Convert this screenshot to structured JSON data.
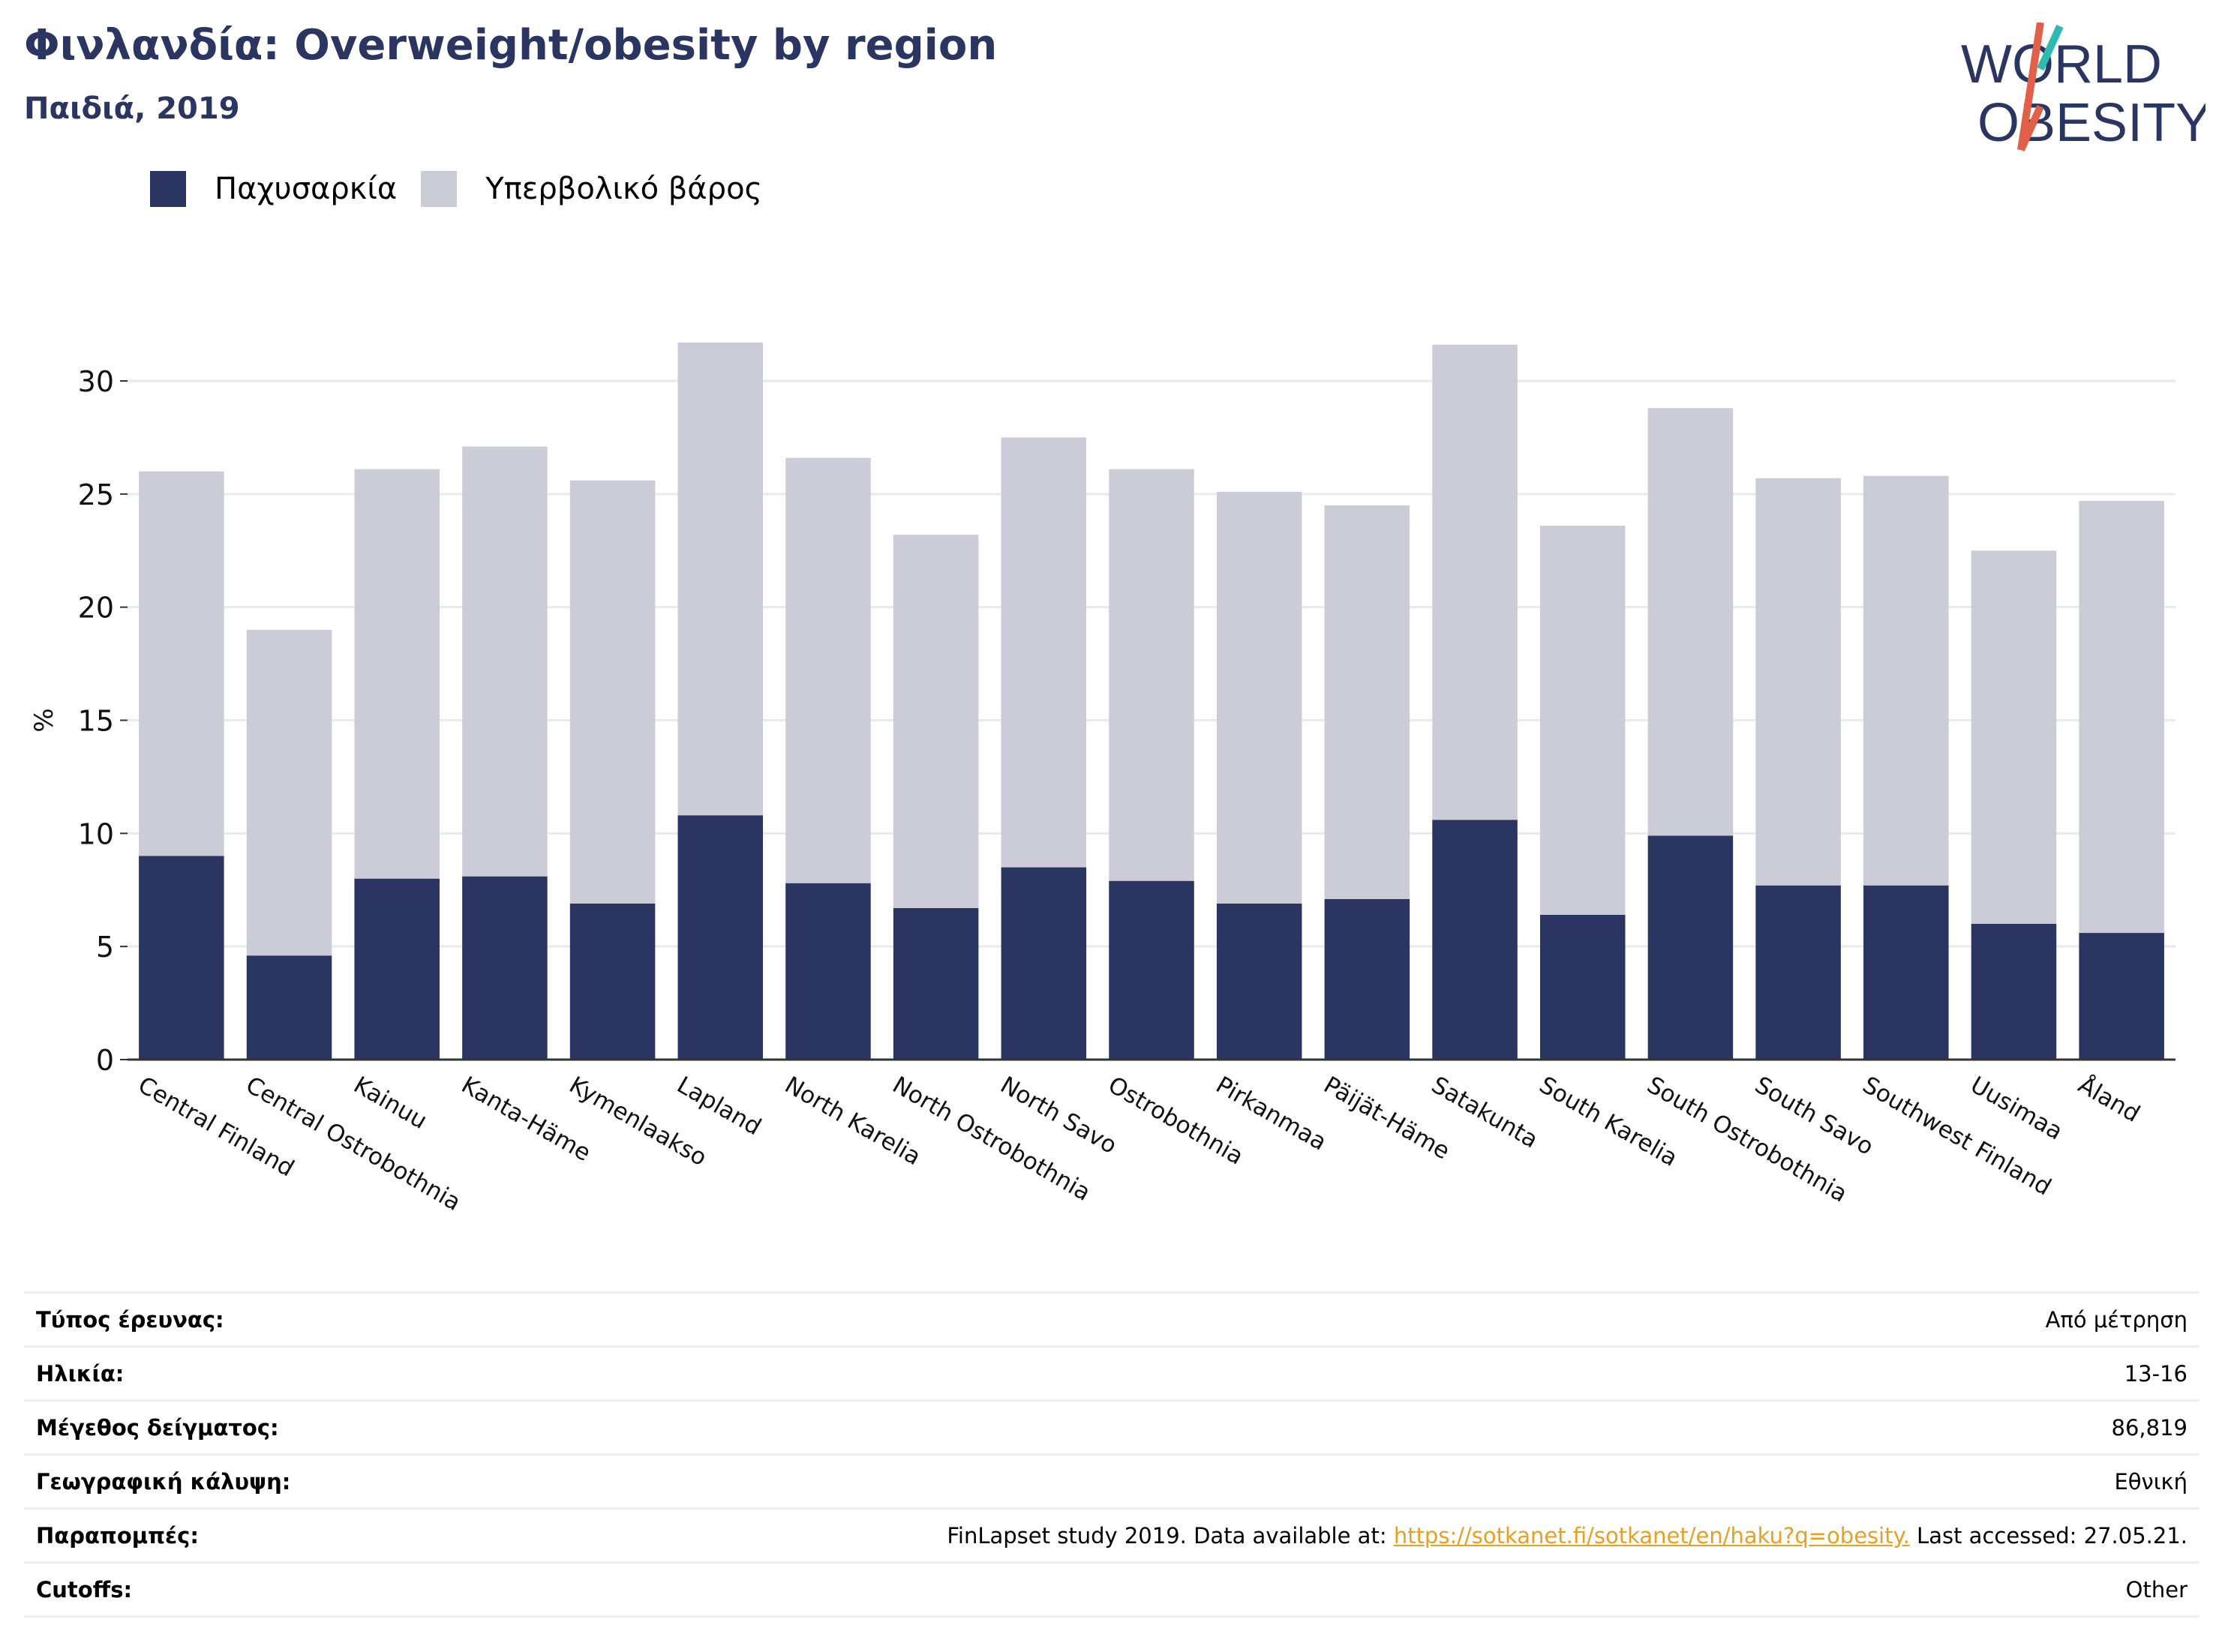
{
  "header": {
    "title": "Φινλανδία: Overweight/obesity by region",
    "subtitle": "Παιδιά, 2019",
    "logo_text": "WORLD OBESITY"
  },
  "colors": {
    "obesity": "#2a3561",
    "overweight": "#cbccd8",
    "title": "#2a3561",
    "link": "#e8a020"
  },
  "chart_data": {
    "type": "bar",
    "stacked": true,
    "ylabel": "%",
    "xlabel": "",
    "ylim": [
      0,
      32.5
    ],
    "yticks": [
      0,
      5,
      10,
      15,
      20,
      25,
      30
    ],
    "grid": true,
    "legend_position": "top-left",
    "categories": [
      "Central Finland",
      "Central Ostrobothnia",
      "Kainuu",
      "Kanta-Häme",
      "Kymenlaakso",
      "Lapland",
      "North Karelia",
      "North Ostrobothnia",
      "North Savo",
      "Ostrobothnia",
      "Pirkanmaa",
      "Päijät-Häme",
      "Satakunta",
      "South Karelia",
      "South Ostrobothnia",
      "South Savo",
      "Southwest Finland",
      "Uusimaa",
      "Åland"
    ],
    "series": [
      {
        "name": "Παχυσαρκία",
        "values": [
          9.0,
          4.6,
          8.0,
          8.1,
          6.9,
          10.8,
          7.8,
          6.7,
          8.5,
          7.9,
          6.9,
          7.1,
          10.6,
          6.4,
          9.9,
          7.7,
          7.7,
          6.0,
          5.6
        ]
      },
      {
        "name": "Υπερβολικό βάρος",
        "values": [
          17.0,
          14.4,
          18.1,
          19.0,
          18.7,
          20.9,
          18.8,
          16.5,
          19.0,
          18.2,
          18.2,
          17.4,
          21.0,
          17.2,
          18.9,
          18.0,
          18.1,
          16.5,
          19.1
        ]
      }
    ]
  },
  "info": [
    {
      "label": "Τύπος έρευνας:",
      "value": "Από μέτρηση"
    },
    {
      "label": "Ηλικία:",
      "value": "13-16"
    },
    {
      "label": "Μέγεθος δείγματος:",
      "value": "86,819"
    },
    {
      "label": "Γεωγραφική κάλυψη:",
      "value": "Εθνική"
    },
    {
      "label": "Παραπομπές:",
      "value_prefix": "FinLapset study 2019. Data available at: ",
      "link": "https://sotkanet.fi/sotkanet/en/haku?q=obesity.",
      "value_suffix": " Last accessed: 27.05.21."
    },
    {
      "label": "Cutoffs:",
      "value": "Other"
    }
  ]
}
